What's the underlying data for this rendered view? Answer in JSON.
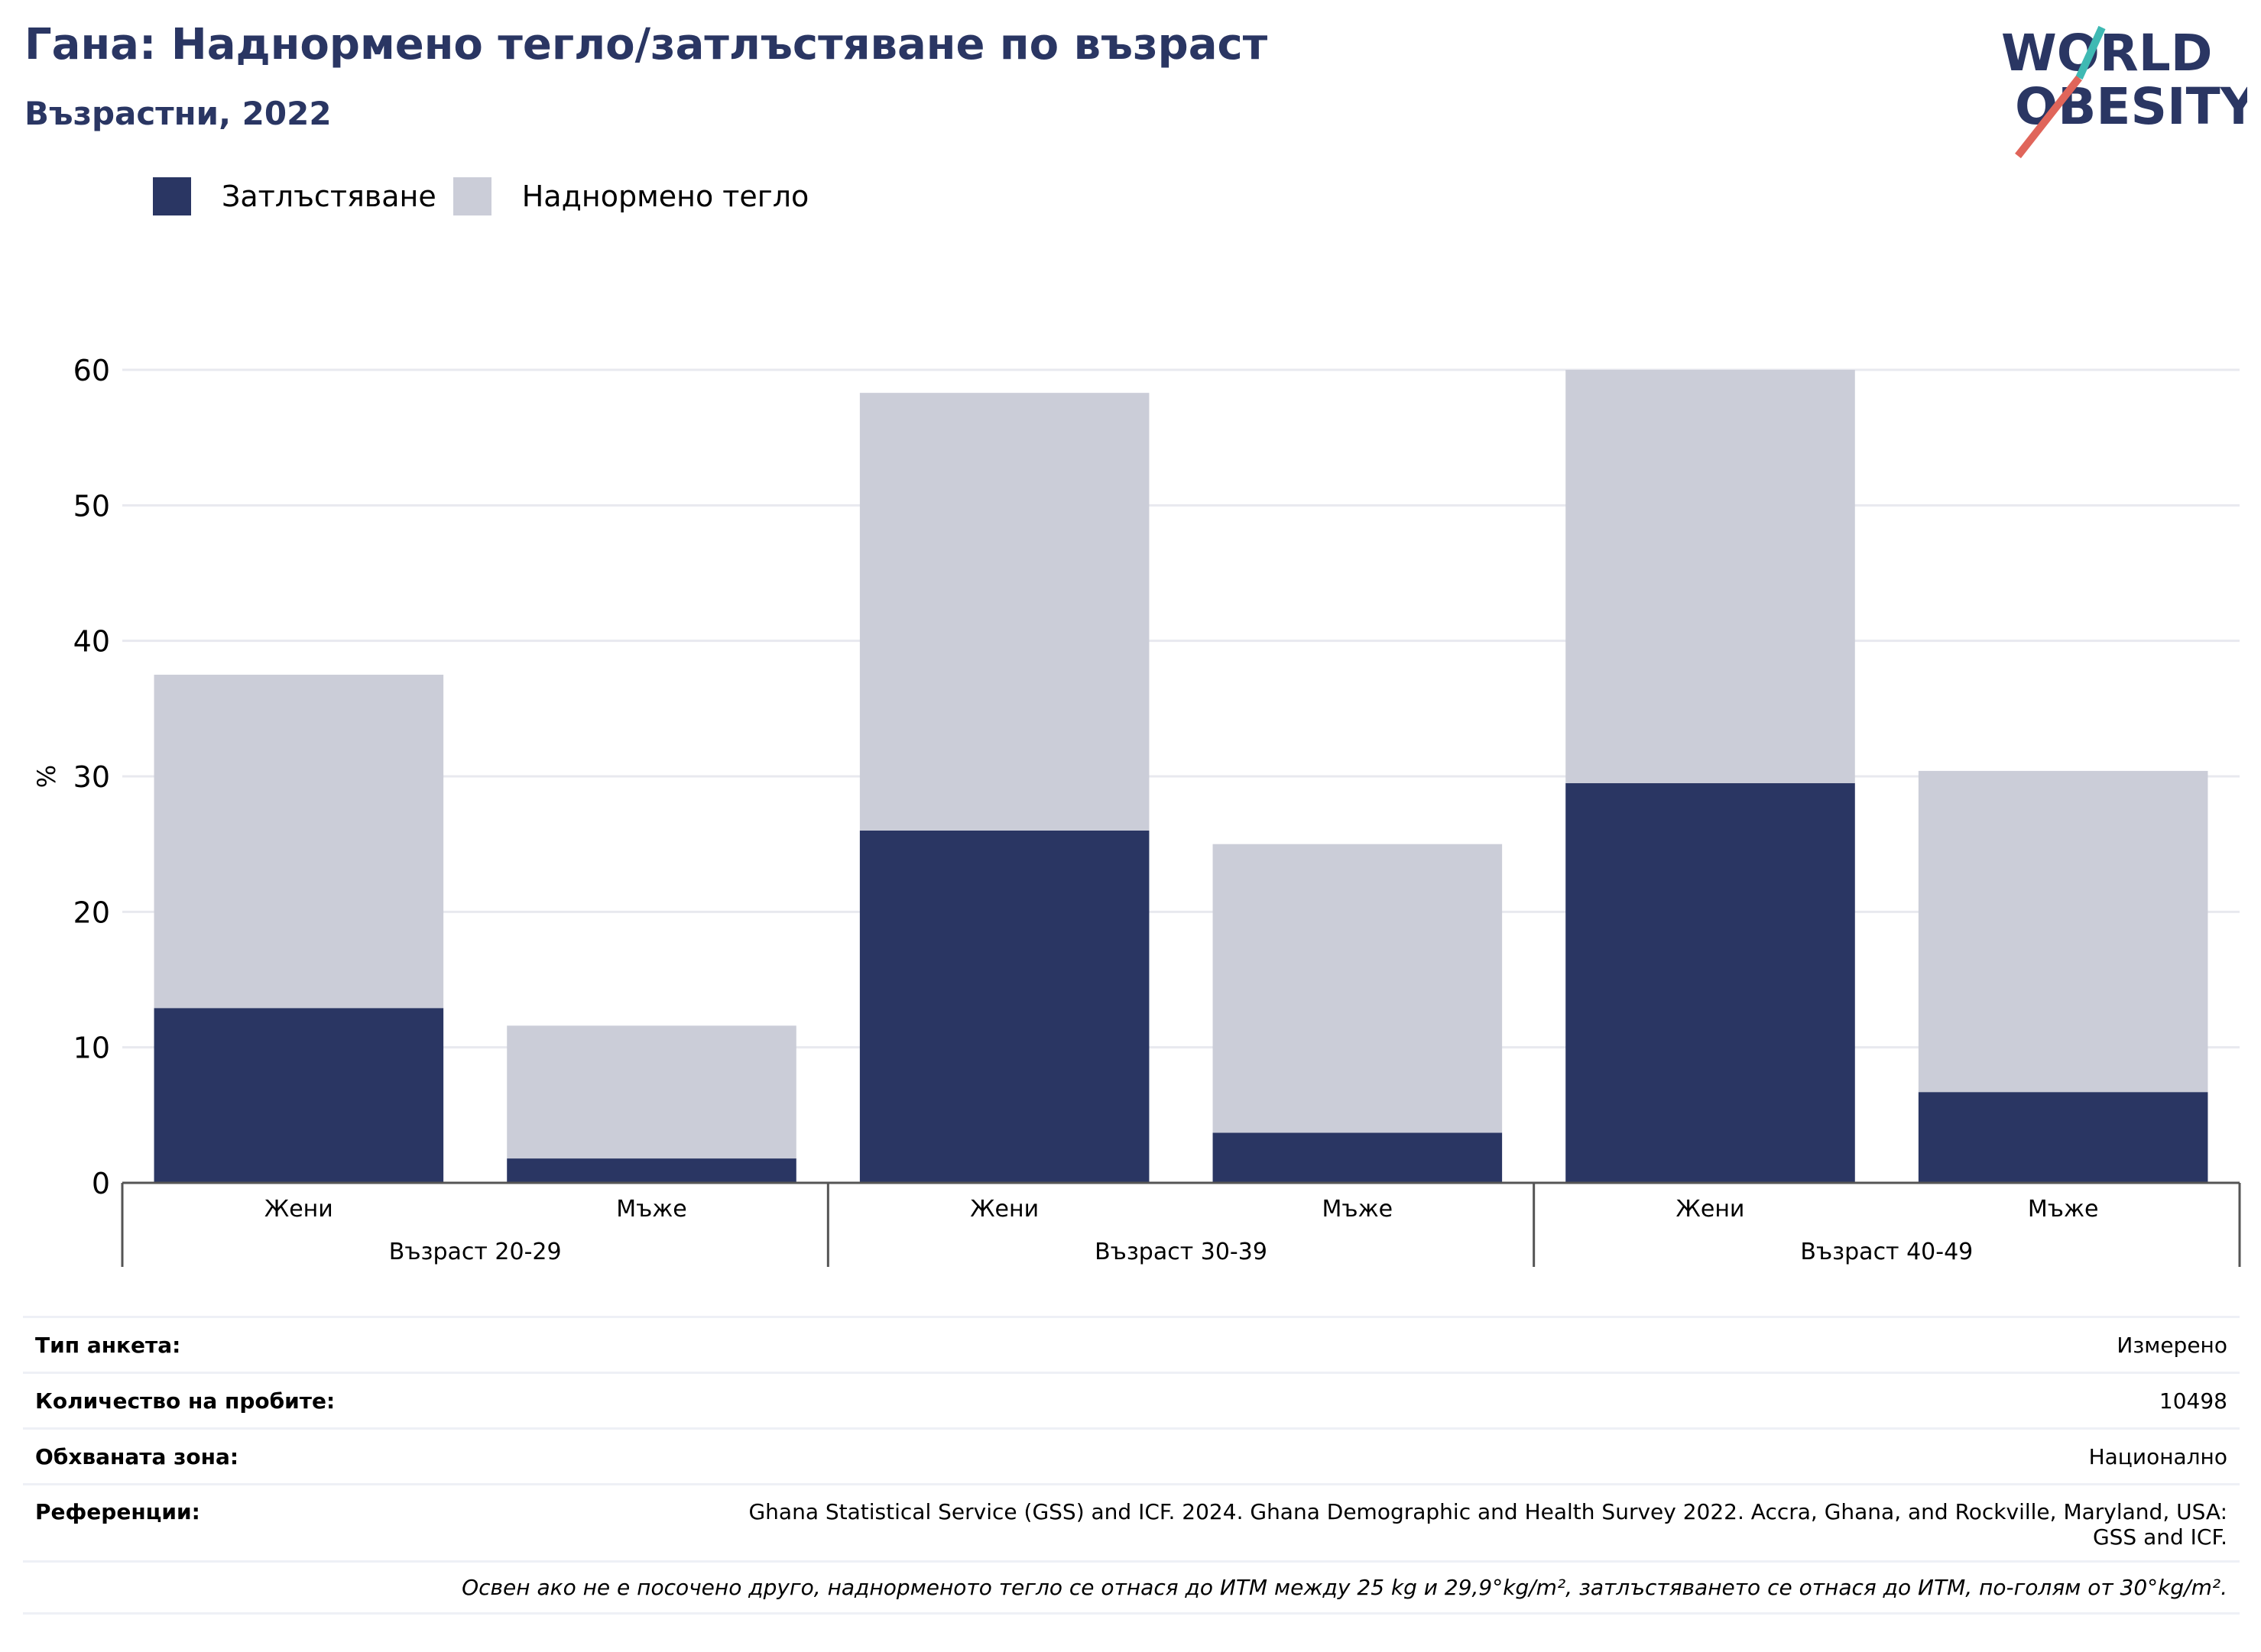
{
  "header": {
    "title": "Гана: Наднормено тегло/затлъстяване по възраст",
    "subtitle": "Възрастни, 2022"
  },
  "logo": {
    "line1": "WORLD",
    "line2": "OBESITY"
  },
  "colors": {
    "obesity": "#2a3663",
    "overweight": "#cbcdd8",
    "accent_red": "#e0655a",
    "accent_teal": "#3fb9b3"
  },
  "legend": {
    "obesity": "Затлъстяване",
    "overweight": "Наднормено тегло"
  },
  "chart_data": {
    "type": "bar",
    "stacked": true,
    "ylabel": "%",
    "ylim": [
      0,
      60
    ],
    "yticks": [
      0,
      10,
      20,
      30,
      40,
      50,
      60
    ],
    "grid": true,
    "groups": [
      "Възраст 20-29",
      "Възраст 30-39",
      "Възраст 40-49"
    ],
    "categories": [
      "Жени",
      "Мъже",
      "Жени",
      "Мъже",
      "Жени",
      "Мъже"
    ],
    "series": [
      {
        "name": "Затлъстяване",
        "values": [
          12.9,
          1.8,
          26.0,
          3.7,
          29.5,
          6.7
        ]
      },
      {
        "name": "Наднормено тегло",
        "values": [
          24.6,
          9.8,
          32.3,
          21.3,
          30.5,
          23.7
        ]
      }
    ]
  },
  "info": {
    "survey_type_label": "Тип анкета:",
    "survey_type": "Измерено",
    "sample_label": "Количество на пробите:",
    "sample": "10498",
    "area_label": "Обхваната зона:",
    "area": "Национално",
    "refs_label": "Референции:",
    "refs_line1": "Ghana Statistical Service (GSS) and ICF. 2024. Ghana Demographic and Health Survey 2022. Accra, Ghana, and Rockville, Maryland, USA:",
    "refs_line2": "GSS and ICF.",
    "note": "Освен ако не е посочено друго, наднорменото тегло се отнася до ИТМ между 25 kg и 29,9°kg/m², затлъстяването се отнася до ИТМ, по-голям от 30°kg/m²."
  }
}
